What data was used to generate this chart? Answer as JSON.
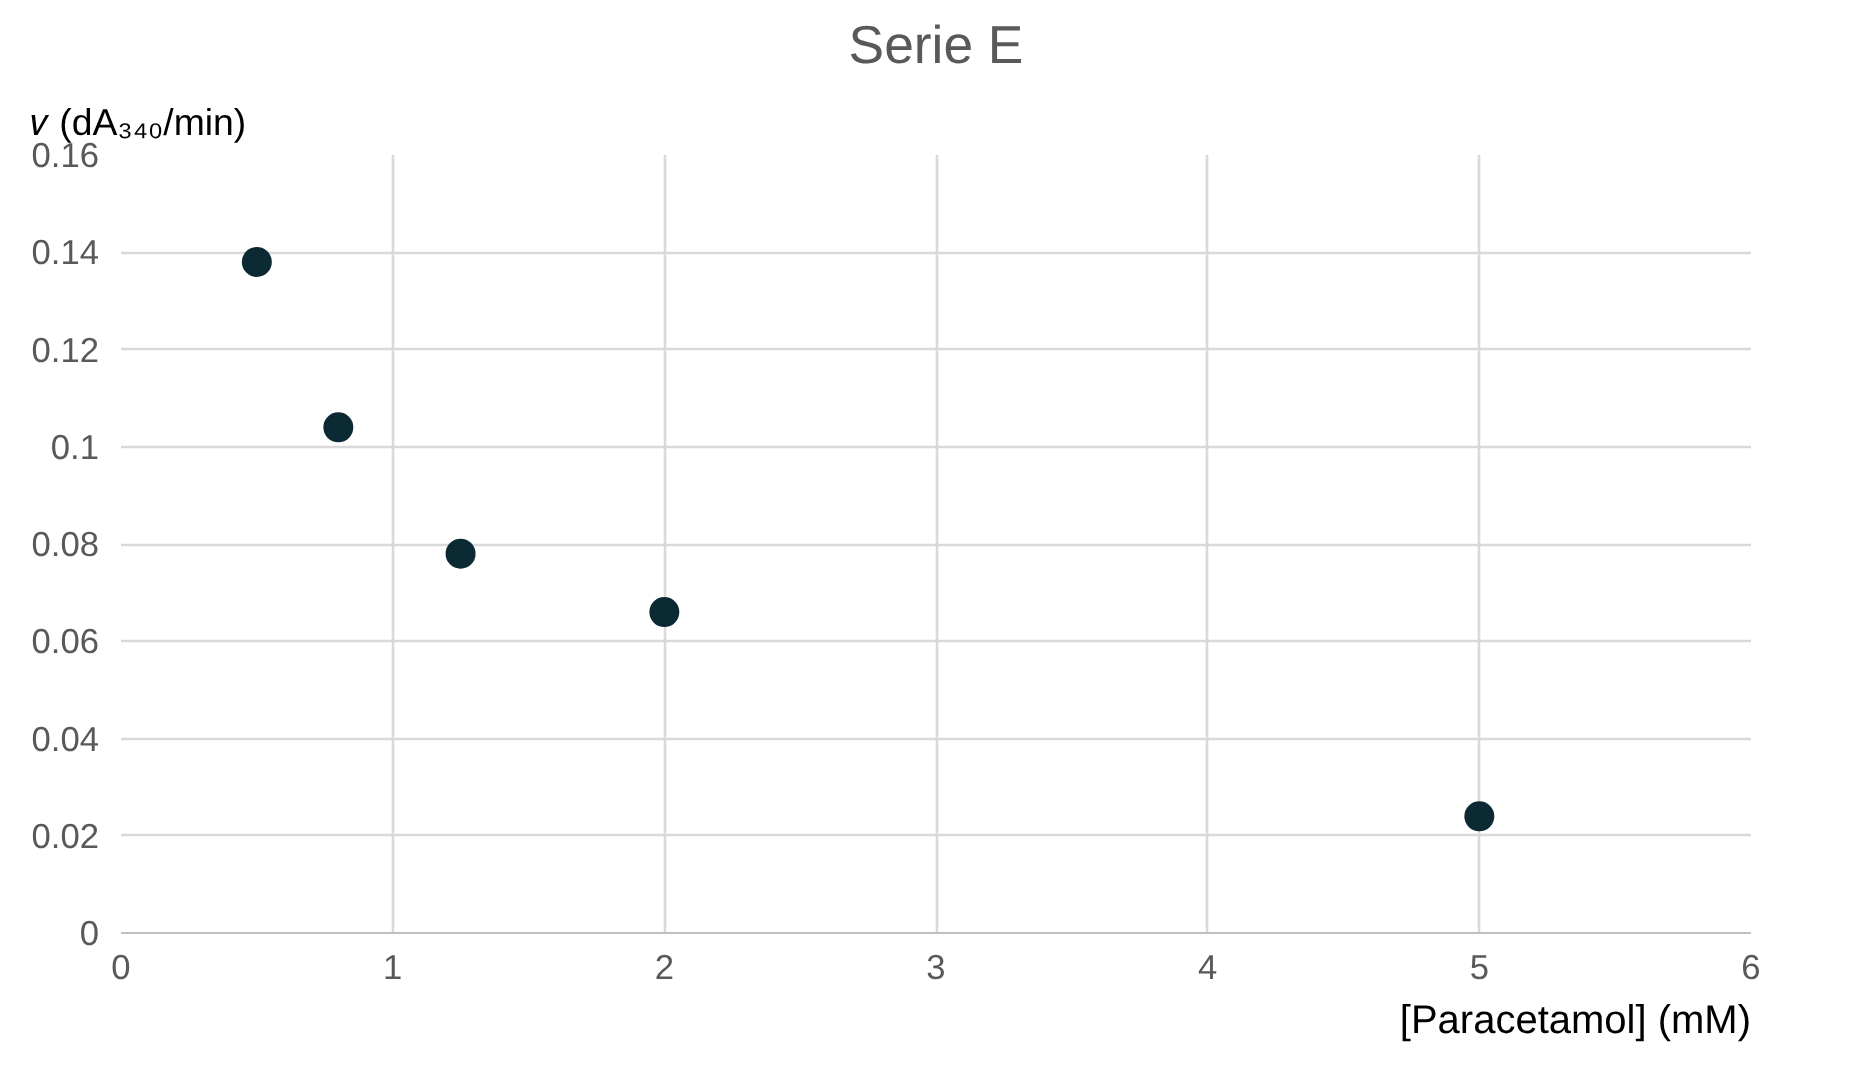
{
  "chart_data": {
    "type": "scatter",
    "title": "Serie E",
    "xlabel": "[Paracetamol] (mM)",
    "ylabel": "𝑣 (dA₃₄₀/min)",
    "x": [
      0.5,
      0.8,
      1.25,
      2,
      5
    ],
    "series": [
      {
        "color": "#0b2a33",
        "values": [
          0.138,
          0.104,
          0.078,
          0.066,
          0.024
        ]
      }
    ],
    "xlim": [
      0,
      6
    ],
    "xticks": [
      0,
      1,
      2,
      3,
      4,
      5,
      6
    ],
    "ylim": [
      0,
      0.16
    ],
    "yticks": [
      0,
      0.02,
      0.04,
      0.06,
      0.08,
      0.1,
      0.12,
      0.14,
      0.16
    ],
    "grid": true,
    "marker": "circle"
  }
}
